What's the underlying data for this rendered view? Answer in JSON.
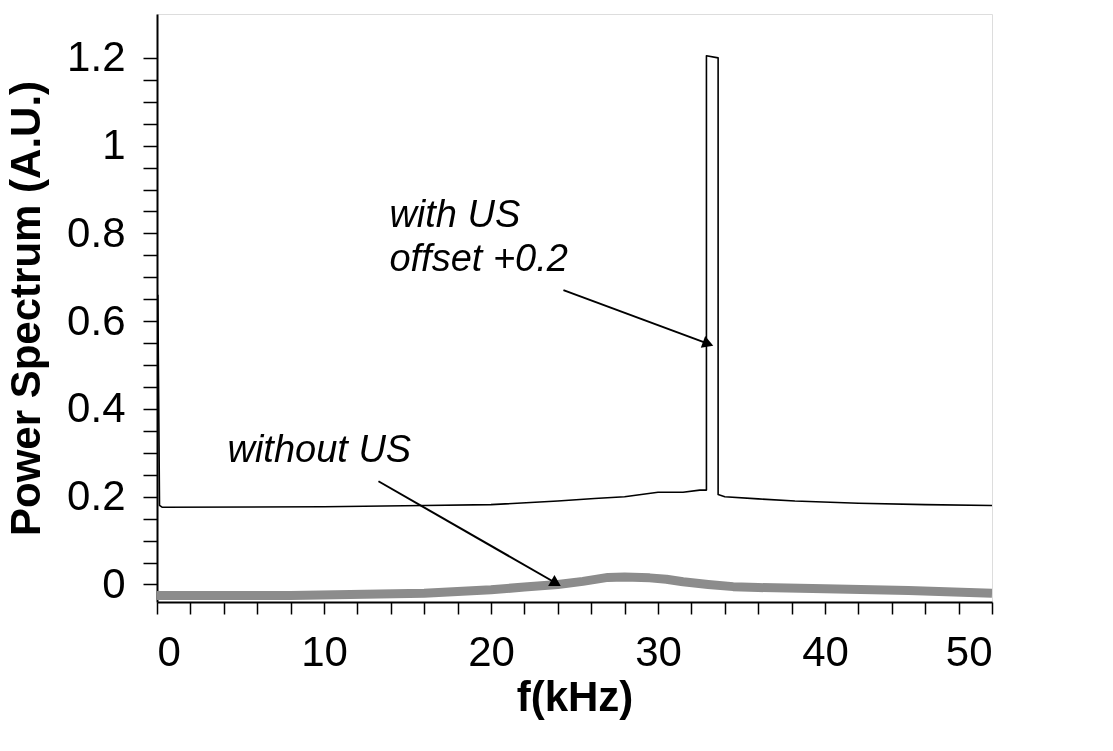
{
  "chart_data": {
    "type": "line",
    "xlabel": "f(kHz)",
    "ylabel": "Power Spectrum (A.U.)",
    "xlim": [
      0,
      50
    ],
    "ylim": [
      -0.04,
      1.3
    ],
    "xticks": [
      0,
      {
        "value": 2,
        "label": null
      },
      {
        "value": 4,
        "label": null
      },
      {
        "value": 6,
        "label": null
      },
      {
        "value": 8,
        "label": null
      },
      10,
      {
        "value": 12,
        "label": null
      },
      {
        "value": 14,
        "label": null
      },
      {
        "value": 16,
        "label": null
      },
      {
        "value": 18,
        "label": null
      },
      20,
      {
        "value": 22,
        "label": null
      },
      {
        "value": 24,
        "label": null
      },
      {
        "value": 26,
        "label": null
      },
      {
        "value": 28,
        "label": null
      },
      30,
      {
        "value": 32,
        "label": null
      },
      {
        "value": 34,
        "label": null
      },
      {
        "value": 36,
        "label": null
      },
      {
        "value": 38,
        "label": null
      },
      40,
      {
        "value": 42,
        "label": null
      },
      {
        "value": 44,
        "label": null
      },
      {
        "value": 46,
        "label": null
      },
      {
        "value": 48,
        "label": null
      },
      50
    ],
    "yticks": [
      0,
      {
        "value": 0.05,
        "label": null
      },
      {
        "value": 0.1,
        "label": null
      },
      {
        "value": 0.15,
        "label": null
      },
      0.2,
      {
        "value": 0.25,
        "label": null
      },
      {
        "value": 0.3,
        "label": null
      },
      {
        "value": 0.35,
        "label": null
      },
      0.4,
      {
        "value": 0.45,
        "label": null
      },
      {
        "value": 0.5,
        "label": null
      },
      {
        "value": 0.55,
        "label": null
      },
      0.6,
      {
        "value": 0.65,
        "label": null
      },
      {
        "value": 0.7,
        "label": null
      },
      {
        "value": 0.75,
        "label": null
      },
      0.8,
      {
        "value": 0.85,
        "label": null
      },
      {
        "value": 0.9,
        "label": null
      },
      {
        "value": 0.95,
        "label": null
      },
      1,
      {
        "value": 1.05,
        "label": null
      },
      {
        "value": 1.1,
        "label": null
      },
      {
        "value": 1.15,
        "label": null
      },
      1.2
    ],
    "grid": false,
    "marker": "none",
    "line_style": "solid",
    "series": [
      {
        "color": "#000000",
        "x": [
          0.05,
          0.15,
          0.3,
          10,
          16,
          20,
          24,
          26.2,
          28,
          30,
          31.5,
          32.5,
          32.9,
          32.9,
          33.6,
          33.6,
          34,
          36,
          38.2,
          42,
          46,
          50
        ],
        "values": [
          0.66,
          0.18,
          0.176,
          0.177,
          0.18,
          0.182,
          0.19,
          0.196,
          0.2,
          0.21,
          0.21,
          0.215,
          0.215,
          1.205,
          1.2,
          0.205,
          0.2,
          0.195,
          0.19,
          0.185,
          0.182,
          0.18
        ]
      },
      {
        "color": "#8c8c8c",
        "x": [
          0,
          8,
          16,
          20,
          22,
          24,
          25.5,
          27,
          28,
          29.5,
          30.5,
          31.5,
          33,
          34.5,
          36,
          40,
          45,
          50
        ],
        "values": [
          -0.025,
          -0.025,
          -0.02,
          -0.012,
          -0.006,
          0.0,
          0.007,
          0.016,
          0.017,
          0.015,
          0.012,
          0.006,
          0.0,
          -0.005,
          -0.007,
          -0.01,
          -0.014,
          -0.02
        ]
      }
    ],
    "annotations": [
      {
        "text": "with US\noffset +0.2",
        "x": 32.9,
        "y": 0.55
      },
      {
        "text": "without US",
        "x": 23.8,
        "y": 0.005
      }
    ]
  }
}
